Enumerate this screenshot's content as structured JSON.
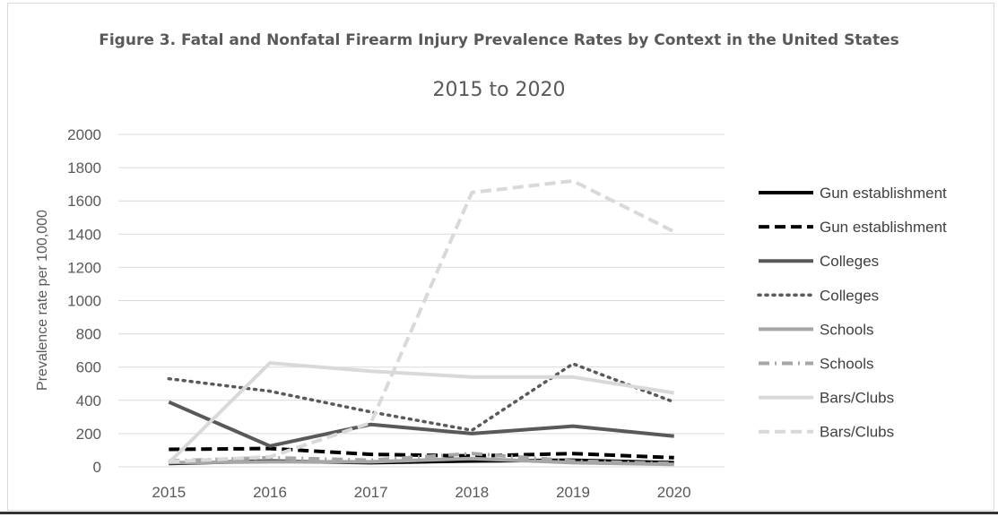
{
  "chart_data": {
    "type": "line",
    "title": "Figure 3. Fatal and Nonfatal Firearm Injury Prevalence Rates by Context in the United States",
    "subtitle": "2015 to 2020",
    "xlabel": "",
    "ylabel": "Prevalence rate per 100,000",
    "ylim": [
      0,
      2000
    ],
    "yticks": [
      0,
      200,
      400,
      600,
      800,
      1000,
      1200,
      1400,
      1600,
      1800,
      2000
    ],
    "categories": [
      "2015",
      "2016",
      "2017",
      "2018",
      "2019",
      "2020"
    ],
    "grid": true,
    "legend_position": "right",
    "series": [
      {
        "name": "Gun establishment",
        "style": "solid",
        "color": "#000000",
        "values": [
          20,
          35,
          25,
          35,
          40,
          25
        ]
      },
      {
        "name": "Gun establishment",
        "style": "dashed",
        "color": "#000000",
        "values": [
          105,
          110,
          75,
          65,
          80,
          55
        ]
      },
      {
        "name": "Colleges",
        "style": "solid",
        "color": "#595959",
        "values": [
          390,
          125,
          255,
          200,
          245,
          185
        ]
      },
      {
        "name": "Colleges",
        "style": "dotted",
        "color": "#595959",
        "values": [
          530,
          455,
          330,
          220,
          620,
          390
        ]
      },
      {
        "name": "Schools",
        "style": "solid",
        "color": "#a6a6a6",
        "values": [
          25,
          30,
          30,
          50,
          25,
          15
        ]
      },
      {
        "name": "Schools",
        "style": "dashdot",
        "color": "#a6a6a6",
        "values": [
          35,
          55,
          40,
          80,
          35,
          20
        ]
      },
      {
        "name": "Bars/Clubs",
        "style": "solid",
        "color": "#d9d9d9",
        "values": [
          25,
          625,
          575,
          540,
          540,
          445
        ]
      },
      {
        "name": "Bars/Clubs",
        "style": "dashed",
        "color": "#d9d9d9",
        "values": [
          30,
          60,
          265,
          1650,
          1720,
          1415
        ]
      }
    ]
  }
}
